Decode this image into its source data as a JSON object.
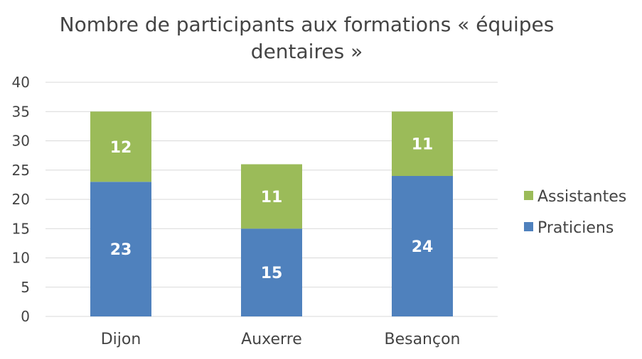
{
  "chart_data": {
    "type": "bar",
    "stacked": true,
    "title": "Nombre de participants aux formations « équipes dentaires »",
    "title_lines": [
      "Nombre de participants aux formations « équipes",
      "dentaires »"
    ],
    "categories": [
      "Dijon",
      "Auxerre",
      "Besançon"
    ],
    "series": [
      {
        "name": "Praticiens",
        "values": [
          23,
          15,
          24
        ],
        "color": "#4f81bd"
      },
      {
        "name": "Assistantes",
        "values": [
          12,
          11,
          11
        ],
        "color": "#9bbb59"
      }
    ],
    "ylim": [
      0,
      40
    ],
    "yticks": [
      0,
      5,
      10,
      15,
      20,
      25,
      30,
      35,
      40
    ],
    "grid": true,
    "gridColor": "#d9d9d9",
    "legend": "right",
    "legend_order": [
      "Assistantes",
      "Praticiens"
    ],
    "data_labels": true
  }
}
